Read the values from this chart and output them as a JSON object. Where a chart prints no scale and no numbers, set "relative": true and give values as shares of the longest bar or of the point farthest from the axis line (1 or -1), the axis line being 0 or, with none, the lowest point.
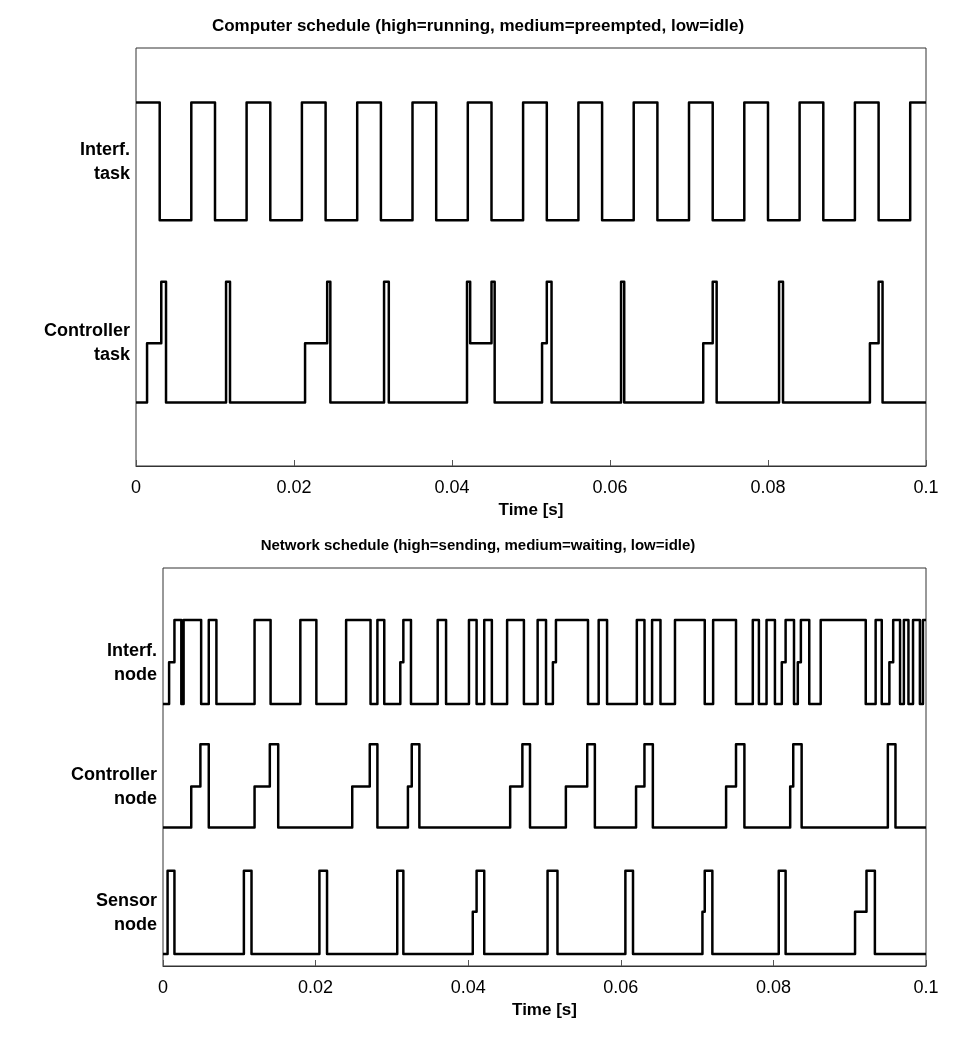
{
  "chart_data": [
    {
      "type": "step",
      "title": "Computer schedule (high=running, medium=preempted, low=idle)",
      "xlabel": "Time [s]",
      "relative": true,
      "xlim": [
        0,
        0.1
      ],
      "xticks": [
        0,
        0.02,
        0.04,
        0.06,
        0.08,
        0.1
      ],
      "tick_labels": "x",
      "marker": "none",
      "line_style": "solid",
      "series": [
        {
          "name": "Interf. task",
          "color": "#000000",
          "x": [
            0,
            0.003,
            0.007,
            0.01,
            0.014,
            0.017,
            0.021,
            0.024,
            0.028,
            0.031,
            0.035,
            0.038,
            0.042,
            0.045,
            0.049,
            0.052,
            0.056,
            0.059,
            0.063,
            0.066,
            0.07,
            0.073,
            0.077,
            0.08,
            0.084,
            0.087,
            0.091,
            0.094,
            0.098,
            0.1
          ],
          "values": [
            1,
            0.676,
            1,
            0.676,
            1,
            0.676,
            1,
            0.676,
            1,
            0.676,
            1,
            0.676,
            1,
            0.676,
            1,
            0.676,
            1,
            0.676,
            1,
            0.676,
            1,
            0.676,
            1,
            0.676,
            1,
            0.676,
            1,
            0.676,
            1,
            1
          ]
        },
        {
          "name": "Controller task",
          "color": "#000000",
          "x": [
            0,
            0.0014,
            0.0032,
            0.0038,
            0.0114,
            0.0119,
            0.0214,
            0.0242,
            0.0246,
            0.0314,
            0.032,
            0.0419,
            0.0423,
            0.045,
            0.0454,
            0.0514,
            0.052,
            0.0526,
            0.0614,
            0.0618,
            0.0718,
            0.073,
            0.0735,
            0.0814,
            0.0819,
            0.0929,
            0.094,
            0.0945,
            0.1
          ],
          "values": [
            0.175,
            0.338,
            0.507,
            0.175,
            0.507,
            0.175,
            0.338,
            0.507,
            0.175,
            0.507,
            0.175,
            0.507,
            0.338,
            0.507,
            0.175,
            0.338,
            0.507,
            0.175,
            0.507,
            0.175,
            0.338,
            0.507,
            0.175,
            0.507,
            0.175,
            0.338,
            0.507,
            0.175,
            0.175
          ]
        }
      ]
    },
    {
      "type": "step",
      "title": "Network schedule (high=sending, medium=waiting, low=idle)",
      "xlabel": "Time [s]",
      "relative": true,
      "xlim": [
        0,
        0.1
      ],
      "xticks": [
        0,
        0.02,
        0.04,
        0.06,
        0.08,
        0.1
      ],
      "tick_labels": "x",
      "marker": "none",
      "line_style": "solid",
      "series": [
        {
          "name": "Interf. node",
          "color": "#000000",
          "x": [
            0,
            0.0008,
            0.0015,
            0.0024,
            0.0027,
            0.005,
            0.006,
            0.007,
            0.012,
            0.0141,
            0.018,
            0.0201,
            0.024,
            0.0272,
            0.0281,
            0.029,
            0.0311,
            0.0315,
            0.0325,
            0.036,
            0.0371,
            0.0401,
            0.0411,
            0.0421,
            0.0431,
            0.0451,
            0.0473,
            0.0491,
            0.0502,
            0.0511,
            0.0515,
            0.0557,
            0.0571,
            0.0582,
            0.0621,
            0.0631,
            0.0641,
            0.0652,
            0.0671,
            0.071,
            0.0721,
            0.0751,
            0.0773,
            0.0781,
            0.0791,
            0.0802,
            0.0811,
            0.0816,
            0.0827,
            0.0832,
            0.0836,
            0.0847,
            0.0862,
            0.0921,
            0.0934,
            0.0942,
            0.0952,
            0.0957,
            0.0966,
            0.0971,
            0.0977,
            0.0983,
            0.0992,
            0.0996,
            0.1
          ],
          "values": [
            0.757,
            0.878,
            1,
            0.757,
            1,
            0.757,
            1,
            0.757,
            1,
            0.757,
            1,
            0.757,
            1,
            0.757,
            1,
            0.757,
            0.878,
            1,
            0.757,
            1,
            0.757,
            1,
            0.757,
            1,
            0.757,
            1,
            0.757,
            1,
            0.757,
            0.878,
            1,
            0.757,
            1,
            0.757,
            1,
            0.757,
            1,
            0.757,
            1,
            0.757,
            1,
            0.757,
            1,
            0.757,
            1,
            0.757,
            0.878,
            1,
            0.757,
            0.878,
            1,
            0.757,
            1,
            0.757,
            1,
            0.757,
            0.878,
            1,
            0.757,
            1,
            0.757,
            1,
            0.757,
            1,
            1
          ]
        },
        {
          "name": "Controller node",
          "color": "#000000",
          "x": [
            0,
            0.0037,
            0.0049,
            0.006,
            0.012,
            0.014,
            0.0151,
            0.0248,
            0.0271,
            0.0281,
            0.0321,
            0.0326,
            0.0336,
            0.0455,
            0.0471,
            0.0481,
            0.0528,
            0.0556,
            0.0566,
            0.062,
            0.0631,
            0.0642,
            0.0738,
            0.0751,
            0.0762,
            0.0822,
            0.0826,
            0.0837,
            0.095,
            0.096,
            0.1
          ],
          "values": [
            0.4,
            0.519,
            0.641,
            0.4,
            0.519,
            0.641,
            0.4,
            0.519,
            0.641,
            0.4,
            0.519,
            0.641,
            0.4,
            0.519,
            0.641,
            0.4,
            0.519,
            0.641,
            0.4,
            0.519,
            0.641,
            0.4,
            0.519,
            0.641,
            0.4,
            0.519,
            0.641,
            0.4,
            0.641,
            0.4,
            0.4
          ]
        },
        {
          "name": "Sensor node",
          "color": "#000000",
          "x": [
            0,
            0.0006,
            0.0015,
            0.0106,
            0.0116,
            0.0205,
            0.0215,
            0.0307,
            0.0315,
            0.0406,
            0.0411,
            0.0421,
            0.0504,
            0.0517,
            0.0606,
            0.0616,
            0.0707,
            0.071,
            0.072,
            0.0807,
            0.0816,
            0.0907,
            0.0922,
            0.0933,
            0.1
          ],
          "values": [
            0.035,
            0.275,
            0.035,
            0.275,
            0.035,
            0.275,
            0.035,
            0.275,
            0.035,
            0.157,
            0.275,
            0.035,
            0.275,
            0.035,
            0.275,
            0.035,
            0.157,
            0.275,
            0.035,
            0.275,
            0.035,
            0.157,
            0.275,
            0.035,
            0.035
          ]
        }
      ]
    }
  ]
}
